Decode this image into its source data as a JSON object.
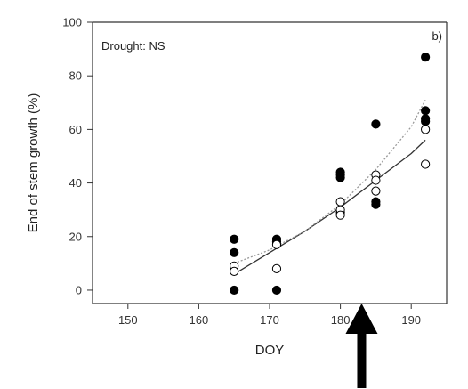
{
  "chart_data": {
    "type": "scatter",
    "panel_label": "b)",
    "annotation": "Drought: NS",
    "xlabel": "DOY",
    "ylabel": "End of stem growth (%)",
    "xlim": [
      145,
      195
    ],
    "ylim": [
      -5,
      100
    ],
    "xticks": [
      150,
      160,
      170,
      180,
      190
    ],
    "yticks": [
      0,
      20,
      40,
      60,
      80,
      100
    ],
    "grid": false,
    "series": [
      {
        "marker": "filled-circle",
        "color": "#000000",
        "x": [
          165,
          165,
          165,
          171,
          171,
          171,
          180,
          180,
          180,
          180,
          185,
          185,
          185,
          192,
          192,
          192,
          192
        ],
        "y": [
          19,
          14,
          0,
          19,
          18,
          0,
          44,
          43,
          42,
          29,
          62,
          33,
          32,
          87,
          67,
          64,
          63
        ]
      },
      {
        "marker": "open-circle",
        "color": "#000000",
        "x": [
          165,
          165,
          171,
          171,
          180,
          180,
          180,
          185,
          185,
          185,
          192,
          192
        ],
        "y": [
          9,
          7,
          17,
          8,
          33,
          30,
          28,
          43,
          41,
          37,
          60,
          47
        ]
      }
    ],
    "fits": [
      {
        "style": "solid",
        "color": "#333333",
        "x": [
          165,
          170,
          175,
          180,
          185,
          190,
          192
        ],
        "y": [
          6,
          14,
          22,
          31,
          41,
          51,
          56
        ]
      },
      {
        "style": "dotted",
        "color": "#999999",
        "x": [
          165,
          170,
          175,
          180,
          185,
          190,
          192
        ],
        "y": [
          10,
          15,
          22,
          32,
          45,
          61,
          71
        ]
      }
    ],
    "arrow": {
      "x": 183,
      "direction": "up"
    }
  }
}
